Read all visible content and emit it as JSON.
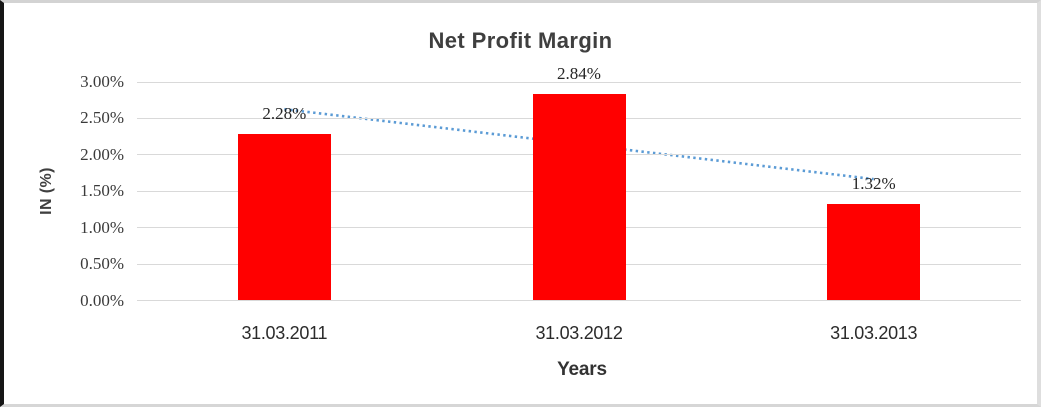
{
  "chart_data": {
    "type": "bar",
    "title": "Net Profit Margin",
    "xlabel": "Years",
    "ylabel": "IN (%)",
    "categories": [
      "31.03.2011",
      "31.03.2012",
      "31.03.2013"
    ],
    "values": [
      2.28,
      2.84,
      1.32
    ],
    "data_labels": [
      "2.28%",
      "2.84%",
      "1.32%"
    ],
    "yticks": [
      "0.00%",
      "0.50%",
      "1.00%",
      "1.50%",
      "2.00%",
      "2.50%",
      "3.00%"
    ],
    "ylim": [
      0,
      3
    ],
    "grid": "horizontal",
    "legend": "none",
    "bar_color": "#ff0000",
    "gridline_color": "#d9d9d9",
    "text_color": "#3f3f3f",
    "trendline": {
      "type": "linear",
      "style": "dotted",
      "color": "#5b9bd5"
    }
  }
}
